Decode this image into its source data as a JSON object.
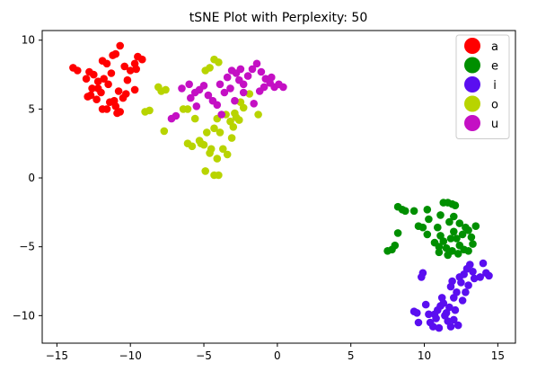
{
  "chart_data": {
    "type": "scatter",
    "title": "tSNE Plot with Perplexity: 50",
    "xlabel": "",
    "ylabel": "",
    "xlim": [
      -16,
      16.2
    ],
    "ylim": [
      -12,
      10.7
    ],
    "x_ticks": [
      -15,
      -10,
      -5,
      0,
      5,
      10,
      15
    ],
    "y_ticks": [
      -10,
      -5,
      0,
      5,
      10
    ],
    "x_tick_labels": [
      "−15",
      "−10",
      "−5",
      "0",
      "5",
      "10",
      "15"
    ],
    "y_tick_labels": [
      "−10",
      "−5",
      "0",
      "5",
      "10"
    ],
    "grid": false,
    "legend": {
      "placement": "top-right"
    },
    "series": [
      {
        "name": "a",
        "color": "#ff0000",
        "points": [
          [
            -13.9,
            8.0
          ],
          [
            -13.6,
            7.8
          ],
          [
            -13.0,
            7.2
          ],
          [
            -12.8,
            7.7
          ],
          [
            -12.5,
            7.5
          ],
          [
            -12.2,
            7.0
          ],
          [
            -11.9,
            8.5
          ],
          [
            -11.6,
            8.3
          ],
          [
            -11.3,
            7.6
          ],
          [
            -11.0,
            9.0
          ],
          [
            -10.7,
            9.6
          ],
          [
            -11.2,
            8.9
          ],
          [
            -10.4,
            8.1
          ],
          [
            -10.0,
            7.8
          ],
          [
            -9.7,
            8.3
          ],
          [
            -9.5,
            8.8
          ],
          [
            -9.2,
            8.6
          ],
          [
            -9.6,
            7.9
          ],
          [
            -10.2,
            7.1
          ],
          [
            -11.8,
            7.2
          ],
          [
            -12.6,
            6.5
          ],
          [
            -12.9,
            5.9
          ],
          [
            -12.3,
            5.7
          ],
          [
            -12.0,
            6.2
          ],
          [
            -11.5,
            6.8
          ],
          [
            -11.9,
            5.0
          ],
          [
            -11.4,
            5.5
          ],
          [
            -11.0,
            5.2
          ],
          [
            -10.7,
            4.8
          ],
          [
            -10.5,
            5.8
          ],
          [
            -10.8,
            6.3
          ],
          [
            -10.3,
            6.1
          ],
          [
            -9.7,
            6.4
          ],
          [
            -12.2,
            6.5
          ],
          [
            -11.1,
            5.6
          ],
          [
            -12.7,
            6.0
          ],
          [
            -11.6,
            5.0
          ],
          [
            -10.9,
            4.7
          ]
        ]
      },
      {
        "name": "e",
        "color": "#008f00",
        "points": [
          [
            7.5,
            -5.3
          ],
          [
            7.8,
            -5.2
          ],
          [
            8.0,
            -4.9
          ],
          [
            8.2,
            -4.0
          ],
          [
            8.2,
            -2.1
          ],
          [
            8.5,
            -2.3
          ],
          [
            8.7,
            -2.4
          ],
          [
            9.3,
            -2.4
          ],
          [
            9.6,
            -3.5
          ],
          [
            9.9,
            -3.6
          ],
          [
            10.2,
            -4.1
          ],
          [
            10.3,
            -3.0
          ],
          [
            10.2,
            -2.3
          ],
          [
            10.7,
            -4.7
          ],
          [
            11.0,
            -5.4
          ],
          [
            11.1,
            -4.2
          ],
          [
            11.3,
            -4.6
          ],
          [
            11.5,
            -5.1
          ],
          [
            11.6,
            -5.6
          ],
          [
            11.8,
            -4.4
          ],
          [
            12.0,
            -3.9
          ],
          [
            12.2,
            -4.4
          ],
          [
            12.4,
            -4.9
          ],
          [
            12.6,
            -4.1
          ],
          [
            12.8,
            -3.6
          ],
          [
            13.0,
            -3.8
          ],
          [
            13.2,
            -4.3
          ],
          [
            13.3,
            -4.8
          ],
          [
            13.5,
            -3.5
          ],
          [
            13.0,
            -5.3
          ],
          [
            11.3,
            -1.8
          ],
          [
            11.6,
            -1.8
          ],
          [
            11.9,
            -1.9
          ],
          [
            12.1,
            -2.0
          ],
          [
            11.1,
            -2.7
          ],
          [
            11.7,
            -3.2
          ],
          [
            12.0,
            -2.8
          ],
          [
            12.4,
            -3.3
          ],
          [
            10.9,
            -3.6
          ],
          [
            12.3,
            -5.5
          ],
          [
            11.0,
            -5.0
          ],
          [
            11.9,
            -5.3
          ],
          [
            12.7,
            -5.2
          ]
        ]
      },
      {
        "name": "i",
        "color": "#5a0ef0",
        "points": [
          [
            9.3,
            -9.7
          ],
          [
            9.5,
            -9.8
          ],
          [
            9.6,
            -10.5
          ],
          [
            9.8,
            -7.2
          ],
          [
            9.9,
            -6.9
          ],
          [
            10.1,
            -9.2
          ],
          [
            10.3,
            -9.9
          ],
          [
            10.4,
            -10.5
          ],
          [
            10.6,
            -10.8
          ],
          [
            10.8,
            -10.2
          ],
          [
            10.9,
            -9.6
          ],
          [
            11.1,
            -9.3
          ],
          [
            11.2,
            -8.7
          ],
          [
            11.3,
            -9.1
          ],
          [
            11.5,
            -9.8
          ],
          [
            11.6,
            -10.4
          ],
          [
            11.8,
            -10.8
          ],
          [
            12.0,
            -10.3
          ],
          [
            12.1,
            -9.6
          ],
          [
            12.0,
            -8.7
          ],
          [
            12.2,
            -8.3
          ],
          [
            12.5,
            -7.6
          ],
          [
            12.4,
            -7.2
          ],
          [
            12.7,
            -7.0
          ],
          [
            12.9,
            -6.6
          ],
          [
            13.1,
            -6.3
          ],
          [
            13.3,
            -6.8
          ],
          [
            13.0,
            -7.8
          ],
          [
            12.8,
            -8.3
          ],
          [
            12.6,
            -8.9
          ],
          [
            11.9,
            -7.5
          ],
          [
            11.8,
            -7.9
          ],
          [
            14.0,
            -6.2
          ],
          [
            14.2,
            -6.9
          ],
          [
            14.4,
            -7.1
          ],
          [
            13.8,
            -7.2
          ],
          [
            11.4,
            -10.0
          ],
          [
            11.0,
            -10.9
          ],
          [
            10.7,
            -9.9
          ],
          [
            11.7,
            -9.4
          ],
          [
            12.3,
            -10.7
          ],
          [
            13.4,
            -7.3
          ]
        ]
      },
      {
        "name": "o",
        "color": "#b8d400",
        "points": [
          [
            -9.0,
            4.8
          ],
          [
            -8.7,
            4.9
          ],
          [
            -8.1,
            6.6
          ],
          [
            -7.9,
            6.3
          ],
          [
            -7.6,
            6.4
          ],
          [
            -7.7,
            3.4
          ],
          [
            -6.4,
            5.0
          ],
          [
            -6.1,
            5.0
          ],
          [
            -6.1,
            2.5
          ],
          [
            -5.8,
            2.3
          ],
          [
            -5.6,
            4.3
          ],
          [
            -5.3,
            2.7
          ],
          [
            -5.0,
            2.4
          ],
          [
            -4.8,
            3.3
          ],
          [
            -4.5,
            2.1
          ],
          [
            -4.3,
            3.6
          ],
          [
            -4.1,
            4.3
          ],
          [
            -3.9,
            3.3
          ],
          [
            -3.7,
            2.1
          ],
          [
            -3.5,
            4.6
          ],
          [
            -3.2,
            4.1
          ],
          [
            -3.0,
            3.7
          ],
          [
            -2.8,
            4.4
          ],
          [
            -2.6,
            4.2
          ],
          [
            -2.5,
            5.5
          ],
          [
            -2.3,
            5.1
          ],
          [
            -1.9,
            6.1
          ],
          [
            -1.3,
            4.6
          ],
          [
            -4.9,
            7.8
          ],
          [
            -4.6,
            8.0
          ],
          [
            -4.3,
            8.6
          ],
          [
            -4.0,
            8.4
          ],
          [
            -4.9,
            0.5
          ],
          [
            -4.3,
            0.2
          ],
          [
            -4.1,
            1.4
          ],
          [
            -4.6,
            1.8
          ],
          [
            -5.2,
            2.5
          ],
          [
            -3.1,
            2.9
          ],
          [
            -4.0,
            0.2
          ],
          [
            -2.9,
            4.7
          ],
          [
            -3.4,
            1.7
          ]
        ]
      },
      {
        "name": "u",
        "color": "#c410c4",
        "points": [
          [
            -7.2,
            4.3
          ],
          [
            -6.9,
            4.5
          ],
          [
            -6.5,
            6.5
          ],
          [
            -5.9,
            5.8
          ],
          [
            -5.5,
            5.2
          ],
          [
            -5.3,
            6.4
          ],
          [
            -5.0,
            6.7
          ],
          [
            -4.7,
            6.0
          ],
          [
            -4.4,
            5.6
          ],
          [
            -4.1,
            5.3
          ],
          [
            -3.8,
            4.6
          ],
          [
            -3.6,
            6.2
          ],
          [
            -3.9,
            6.8
          ],
          [
            -3.4,
            7.3
          ],
          [
            -3.1,
            7.8
          ],
          [
            -2.8,
            7.6
          ],
          [
            -2.6,
            7.1
          ],
          [
            -2.3,
            6.8
          ],
          [
            -2.0,
            7.4
          ],
          [
            -1.7,
            7.9
          ],
          [
            -1.4,
            8.3
          ],
          [
            -1.1,
            7.7
          ],
          [
            -0.8,
            7.2
          ],
          [
            -0.5,
            6.9
          ],
          [
            -0.2,
            6.6
          ],
          [
            0.1,
            6.8
          ],
          [
            0.4,
            6.6
          ],
          [
            -0.4,
            7.3
          ],
          [
            -1.2,
            6.3
          ],
          [
            -2.3,
            6.2
          ],
          [
            -2.9,
            5.6
          ],
          [
            -3.2,
            6.5
          ],
          [
            -1.6,
            5.4
          ],
          [
            -5.6,
            6.2
          ],
          [
            -6.0,
            6.8
          ],
          [
            -2.5,
            7.9
          ],
          [
            -0.9,
            6.6
          ]
        ]
      }
    ]
  }
}
